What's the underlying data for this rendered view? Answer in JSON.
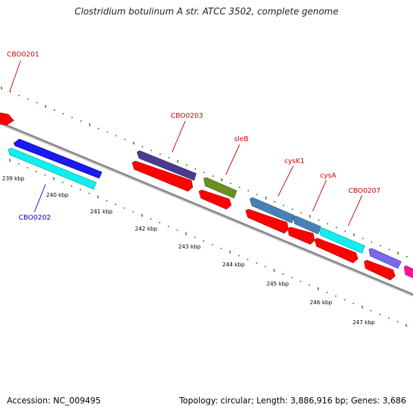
{
  "title": "Clostridium botulinum A str. ATCC 3502, complete genome",
  "footer": {
    "accession": "Accession: NC_009495",
    "summary": "Topology: circular; Length: 3,886,916 bp; Genes: 3,686"
  },
  "colors": {
    "backbone": "#8a8a8a",
    "tick_marks": "#1e7a1e",
    "label_forward": "#cc0000",
    "label_reverse": "#0000cc"
  },
  "ticks": [
    "239 kbp",
    "240 kbp",
    "241 kbp",
    "242 kbp",
    "243 kbp",
    "244 kbp",
    "245 kbp",
    "246 kbp",
    "247 kbp"
  ],
  "labels": [
    {
      "id": "cbo0201",
      "text": "CBO0201",
      "color": "#cc0000"
    },
    {
      "id": "cbo0202",
      "text": "CBO0202",
      "color": "#0000cc"
    },
    {
      "id": "cbo0203",
      "text": "CBO0203",
      "color": "#cc0000"
    },
    {
      "id": "sleb",
      "text": "sleB",
      "color": "#cc0000"
    },
    {
      "id": "cysk1",
      "text": "cysK1",
      "color": "#cc0000"
    },
    {
      "id": "cysa",
      "text": "cysA",
      "color": "#cc0000"
    },
    {
      "id": "cbo0207",
      "text": "CBO0207",
      "color": "#cc0000"
    }
  ],
  "features": [
    {
      "id": "cbo0201-gene",
      "color": "#ff0000"
    },
    {
      "id": "cbo0202-cds",
      "color": "#1a1aee"
    },
    {
      "id": "cbo0202-gene",
      "color": "#11eeee"
    },
    {
      "id": "cbo0203-cds",
      "color": "#4b3b8f"
    },
    {
      "id": "cbo0203-gene",
      "color": "#ff0000"
    },
    {
      "id": "sleb-cds",
      "color": "#6b8e23"
    },
    {
      "id": "sleb-gene",
      "color": "#ff0000"
    },
    {
      "id": "cysk1-cds",
      "color": "#4682b4"
    },
    {
      "id": "cysk1-gene",
      "color": "#ff0000"
    },
    {
      "id": "cysa-cds",
      "color": "#4682b4"
    },
    {
      "id": "cysa-gene",
      "color": "#ff0000"
    },
    {
      "id": "cbo0207-cds",
      "color": "#11eeee"
    },
    {
      "id": "cbo0207-gene",
      "color": "#ff0000"
    },
    {
      "id": "next-cds",
      "color": "#7b68ee"
    },
    {
      "id": "next-gene",
      "color": "#ff0000"
    },
    {
      "id": "edge-cds",
      "color": "#ff1493"
    }
  ]
}
